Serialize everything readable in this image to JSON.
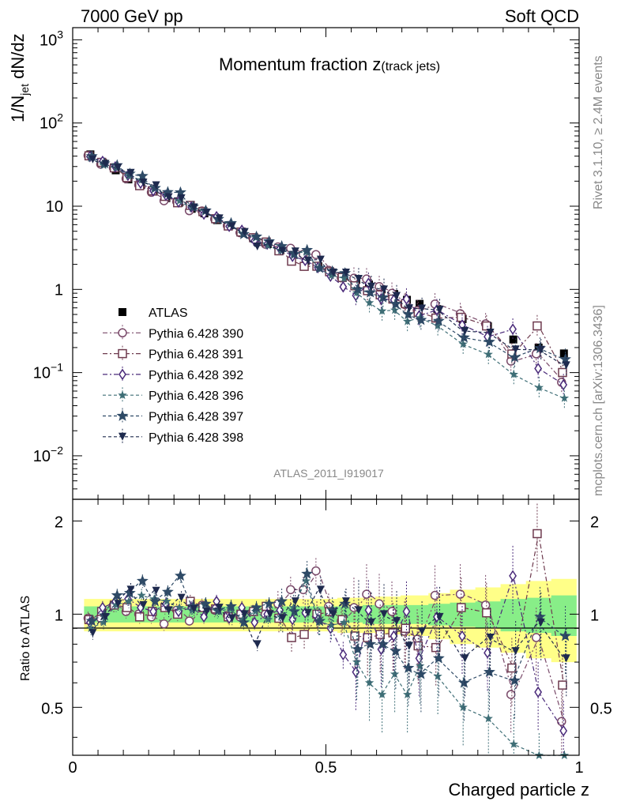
{
  "header": {
    "left": "7000 GeV pp",
    "right": "Soft QCD"
  },
  "side_text": {
    "rivet": "Rivet 3.1.10, ≥ 2.4M events",
    "mcplots": "mcplots.cern.ch [arXiv:1306.3436]"
  },
  "top_panel": {
    "title_main": "Momentum fraction ",
    "title_z": "z",
    "title_sub": "(track jets)",
    "ylabel_main": "1/N",
    "ylabel_sub": "jet",
    "ylabel_rest": " dN/dz",
    "analysis_id": "ATLAS_2011_I919017",
    "y_ticks": [
      {
        "base": "10",
        "exp": "3",
        "v": 1000
      },
      {
        "base": "10",
        "exp": "2",
        "v": 100
      },
      {
        "base": "10",
        "exp": "",
        "v": 10
      },
      {
        "base": "1",
        "exp": "",
        "v": 1
      },
      {
        "base": "10",
        "exp": "−1",
        "v": 0.1
      },
      {
        "base": "10",
        "exp": "−2",
        "v": 0.01
      }
    ]
  },
  "bottom_panel": {
    "ylabel": "Ratio to ATLAS",
    "y_ticks": [
      "0.5",
      "1",
      "2"
    ],
    "xlabel": "Charged particle z",
    "x_ticks": [
      "0",
      "0.5",
      "1"
    ]
  },
  "legend": [
    {
      "label": "ATLAS",
      "marker": "square-filled",
      "color": "#000000",
      "dash": ""
    },
    {
      "label": "Pythia 6.428 390",
      "marker": "circle-open",
      "color": "#7a4a6a",
      "dash": "6,3,2,3"
    },
    {
      "label": "Pythia 6.428 391",
      "marker": "square-open",
      "color": "#6e3a4e",
      "dash": "6,3,2,3"
    },
    {
      "label": "Pythia 6.428 392",
      "marker": "diamond-open",
      "color": "#4a2a7a",
      "dash": "6,3,2,3"
    },
    {
      "label": "Pythia 6.428 396",
      "marker": "star-small",
      "color": "#3e6e76",
      "dash": "4,3"
    },
    {
      "label": "Pythia 6.428 397",
      "marker": "star-open",
      "color": "#2e4a66",
      "dash": "4,3"
    },
    {
      "label": "Pythia 6.428 398",
      "marker": "triangle-down",
      "color": "#1e2a4e",
      "dash": "4,3"
    }
  ],
  "chart_data": {
    "type": "scatter",
    "x": [
      0.035,
      0.06,
      0.085,
      0.11,
      0.135,
      0.16,
      0.185,
      0.21,
      0.235,
      0.26,
      0.285,
      0.31,
      0.335,
      0.36,
      0.385,
      0.41,
      0.435,
      0.46,
      0.485,
      0.51,
      0.535,
      0.56,
      0.585,
      0.61,
      0.635,
      0.66,
      0.685,
      0.72,
      0.77,
      0.82,
      0.87,
      0.92,
      0.97
    ],
    "xlim": [
      0,
      1
    ],
    "ylim_top": [
      0.003,
      1400
    ],
    "yscale_top": "log",
    "ylim_ratio": [
      0.35,
      2.35
    ],
    "yscale_ratio": "log",
    "atlas": {
      "values": [
        42,
        33,
        27,
        21,
        18,
        15,
        12.5,
        11,
        9.3,
        8.2,
        6.8,
        5.9,
        4.9,
        4.1,
        3.5,
        3.0,
        2.6,
        2.2,
        1.9,
        1.6,
        1.45,
        1.3,
        1.15,
        1.0,
        0.88,
        0.75,
        0.67,
        0.58,
        0.44,
        0.36,
        0.25,
        0.2,
        0.17
      ],
      "band_inner": [
        0.06,
        0.06,
        0.06,
        0.06,
        0.06,
        0.06,
        0.06,
        0.06,
        0.06,
        0.06,
        0.06,
        0.06,
        0.06,
        0.06,
        0.06,
        0.06,
        0.06,
        0.06,
        0.06,
        0.06,
        0.06,
        0.06,
        0.07,
        0.07,
        0.07,
        0.07,
        0.07,
        0.08,
        0.09,
        0.1,
        0.12,
        0.13,
        0.15
      ],
      "band_outer": [
        0.12,
        0.12,
        0.12,
        0.12,
        0.12,
        0.12,
        0.12,
        0.12,
        0.12,
        0.12,
        0.12,
        0.12,
        0.12,
        0.12,
        0.12,
        0.12,
        0.12,
        0.12,
        0.12,
        0.12,
        0.13,
        0.13,
        0.13,
        0.14,
        0.14,
        0.15,
        0.15,
        0.17,
        0.2,
        0.22,
        0.25,
        0.28,
        0.3
      ]
    },
    "series": [
      {
        "name": "Pythia 6.428 390",
        "ratio": [
          0.97,
          0.97,
          1.07,
          1.02,
          1.0,
          0.98,
          0.93,
          1.03,
          0.95,
          1.07,
          1.03,
          0.99,
          0.98,
          1.02,
          1.0,
          1.08,
          1.2,
          1.2,
          1.38,
          1.06,
          0.95,
          1.05,
          1.16,
          1.08,
          1.02,
          0.88,
          0.83,
          1.15,
          1.16,
          1.07,
          0.55,
          0.84,
          0.45
        ]
      },
      {
        "name": "Pythia 6.428 391",
        "ratio": [
          0.96,
          1.02,
          1.07,
          1.05,
          0.98,
          1.02,
          1.05,
          1.0,
          1.1,
          1.05,
          1.04,
          0.98,
          1.0,
          1.02,
          1.06,
          0.97,
          0.84,
          0.86,
          1.0,
          1.02,
          0.96,
          0.85,
          0.84,
          0.86,
          0.87,
          0.9,
          0.79,
          0.78,
          1.05,
          1.01,
          0.67,
          1.82,
          0.59
        ]
      },
      {
        "name": "Pythia 6.428 392",
        "ratio": [
          0.94,
          1.05,
          1.1,
          1.12,
          1.05,
          1.02,
          1.08,
          1.02,
          1.05,
          0.98,
          1.1,
          0.97,
          1.05,
          0.94,
          1.0,
          1.03,
          0.96,
          1.01,
          0.96,
          0.9,
          0.74,
          0.65,
          1.03,
          0.77,
          0.85,
          1.02,
          0.72,
          0.98,
          0.85,
          0.75,
          1.33,
          0.56,
          0.42
        ]
      },
      {
        "name": "Pythia 6.428 396",
        "ratio": [
          0.9,
          0.94,
          1.07,
          1.1,
          1.15,
          1.12,
          1.1,
          1.05,
          1.03,
          1.07,
          1.02,
          1.04,
          0.96,
          1.02,
          0.96,
          0.98,
          1.05,
          1.28,
          0.95,
          0.92,
          0.94,
          0.7,
          0.6,
          0.55,
          0.64,
          0.55,
          0.68,
          0.63,
          0.5,
          0.46,
          0.38,
          0.33,
          0.29
        ]
      },
      {
        "name": "Pythia 6.428 397",
        "ratio": [
          0.95,
          0.99,
          1.15,
          1.17,
          1.28,
          1.1,
          1.18,
          1.33,
          1.06,
          1.08,
          1.03,
          1.06,
          0.94,
          1.05,
          1.08,
          1.1,
          1.02,
          1.35,
          0.95,
          1.03,
          1.08,
          0.77,
          0.8,
          0.8,
          0.76,
          0.67,
          0.64,
          0.72,
          0.6,
          0.65,
          0.61,
          0.98,
          0.85
        ]
      },
      {
        "name": "Pythia 6.428 398",
        "ratio": [
          0.87,
          0.98,
          1.08,
          1.2,
          1.07,
          1.19,
          1.03,
          1.13,
          1.04,
          1.02,
          1.05,
          0.97,
          1.0,
          0.8,
          1.0,
          0.97,
          1.1,
          1.01,
          1.2,
          1.0,
          1.1,
          1.03,
          0.94,
          1.0,
          0.95,
          0.79,
          0.88,
          0.98,
          0.72,
          0.84,
          0.76,
          0.94,
          0.72
        ]
      }
    ]
  }
}
